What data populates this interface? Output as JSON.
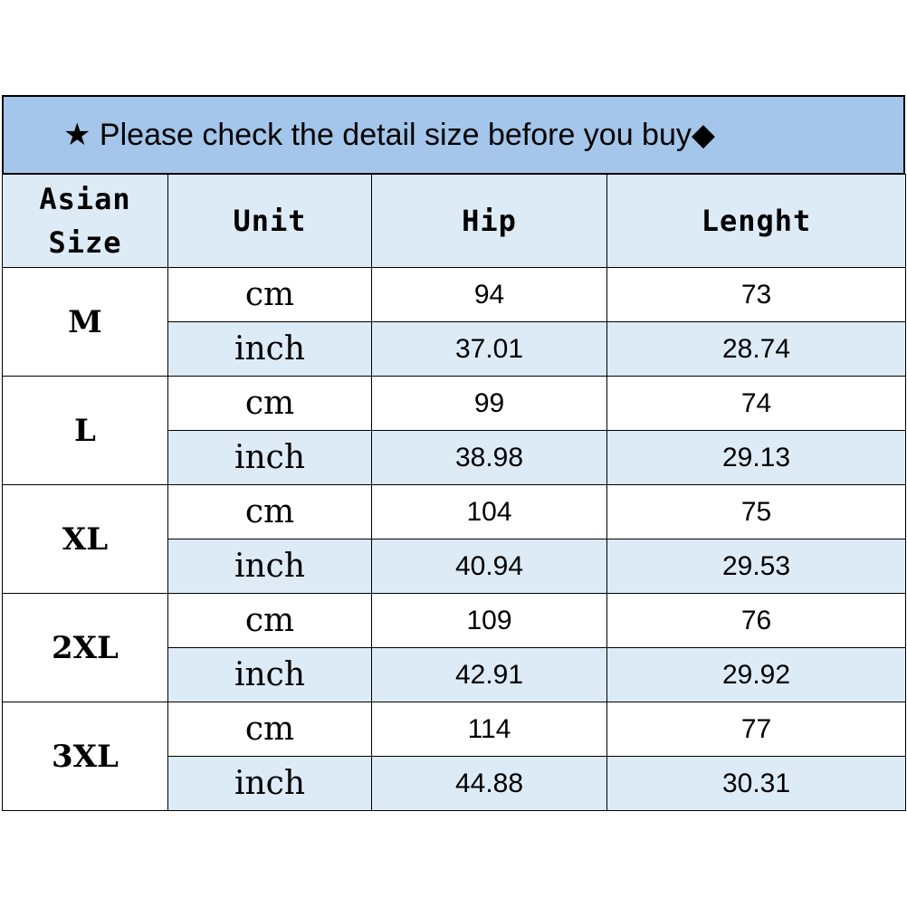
{
  "header": {
    "title": "★ Please check the detail size before you buy◆"
  },
  "table": {
    "columns": [
      "Asian Size",
      "Unit",
      "Hip",
      "Lenght"
    ],
    "rows": [
      {
        "size": "M",
        "units": [
          [
            "cm",
            "94",
            "73"
          ],
          [
            "inch",
            "37.01",
            "28.74"
          ]
        ]
      },
      {
        "size": "L",
        "units": [
          [
            "cm",
            "99",
            "74"
          ],
          [
            "inch",
            "38.98",
            "29.13"
          ]
        ]
      },
      {
        "size": "XL",
        "units": [
          [
            "cm",
            "104",
            "75"
          ],
          [
            "inch",
            "40.94",
            "29.53"
          ]
        ]
      },
      {
        "size": "2XL",
        "units": [
          [
            "cm",
            "109",
            "76"
          ],
          [
            "inch",
            "42.91",
            "29.92"
          ]
        ]
      },
      {
        "size": "3XL",
        "units": [
          [
            "cm",
            "114",
            "77"
          ],
          [
            "inch",
            "44.88",
            "30.31"
          ]
        ]
      }
    ]
  }
}
